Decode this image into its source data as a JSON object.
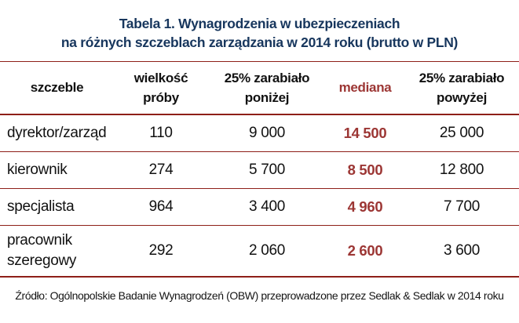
{
  "title": {
    "line1": "Tabela 1. Wynagrodzenia w ubezpieczeniach",
    "line2": "na różnych szczeblach zarządzania w 2014 roku (brutto w PLN)"
  },
  "header": {
    "szczeble": "szczeble",
    "sample_line1": "wielkość",
    "sample_line2": "próby",
    "below_line1": "25% zarabiało",
    "below_line2": "poniżej",
    "median": "mediana",
    "above_line1": "25% zarabiało",
    "above_line2": "powyżej"
  },
  "table": {
    "rows": [
      {
        "szczeble": "dyrektor/zarząd",
        "sample": "110",
        "p25": "9 000",
        "median": "14 500",
        "p75": "25 000"
      },
      {
        "szczeble": "kierownik",
        "sample": "274",
        "p25": "5 700",
        "median": "8 500",
        "p75": "12 800"
      },
      {
        "szczeble": "specjalista",
        "sample": "964",
        "p25": "3 400",
        "median": "4 960",
        "p75": "7 700"
      },
      {
        "szczeble": "pracownik szeregowy",
        "sample": "292",
        "p25": "2 060",
        "median": "2 600",
        "p75": "3 600"
      }
    ]
  },
  "source": "Źródło: Ogólnopolskie Badanie Wynagrodzeń (OBW) przeprowadzone przez Sedlak & Sedlak w 2014 roku",
  "colors": {
    "title_navy": "#17365D",
    "median_red": "#9C3634",
    "rule_red": "#8E1F18",
    "text": "#111111"
  },
  "chart_data": {
    "type": "table",
    "title": "Tabela 1. Wynagrodzenia w ubezpieczeniach na różnych szczeblach zarządzania w 2014 roku (brutto w PLN)",
    "columns": [
      "szczeble",
      "wielkość próby",
      "25% zarabiało poniżej",
      "mediana",
      "25% zarabiało powyżej"
    ],
    "rows": [
      [
        "dyrektor/zarząd",
        110,
        9000,
        14500,
        25000
      ],
      [
        "kierownik",
        274,
        5700,
        8500,
        12800
      ],
      [
        "specjalista",
        964,
        3400,
        4960,
        7700
      ],
      [
        "pracownik szeregowy",
        292,
        2060,
        2600,
        3600
      ]
    ],
    "units": "PLN brutto, 2014",
    "source": "Źródło: Ogólnopolskie Badanie Wynagrodzeń (OBW) przeprowadzone przez Sedlak & Sedlak w 2014 roku"
  }
}
